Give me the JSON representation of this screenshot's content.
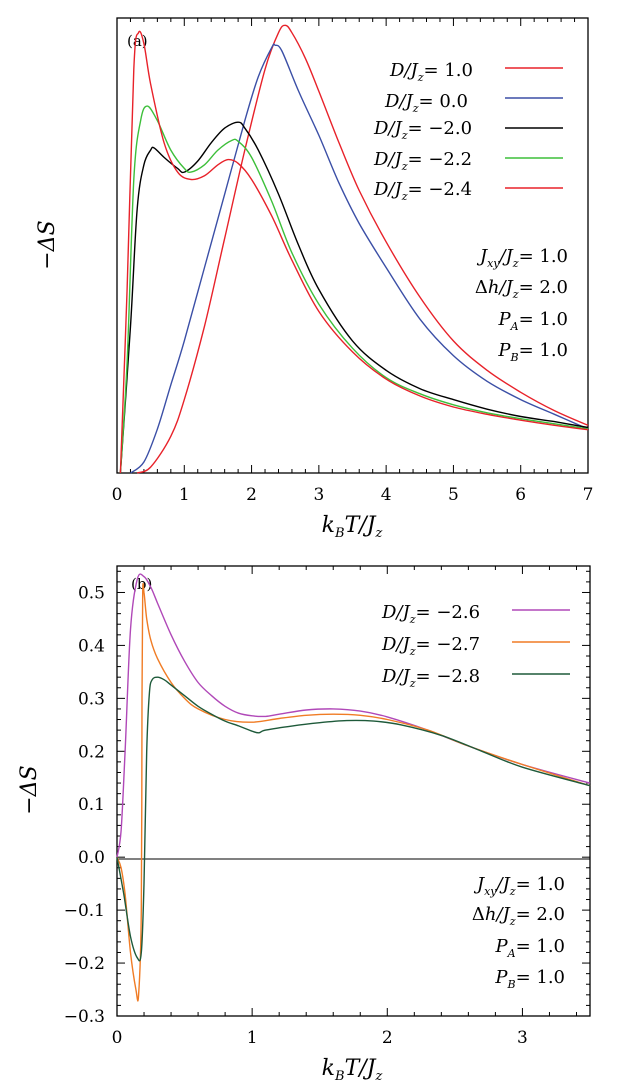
{
  "chart_data": [
    {
      "panel": "(a)",
      "type": "line",
      "ylabel": "−ΔS",
      "xlabel": "k_B T / J_z",
      "xlim": [
        0,
        7
      ],
      "xticks": [
        "0",
        "1",
        "2",
        "3",
        "4",
        "5",
        "6",
        "7"
      ],
      "ylim": [
        0,
        0.62
      ],
      "yticks_labeled": false,
      "grid": false,
      "legend_position": "top-right",
      "series": [
        {
          "name": "D/J_z = 1.0",
          "color": "#e8222a",
          "x": [
            0.3,
            0.5,
            0.8,
            1.0,
            1.3,
            1.6,
            1.9,
            2.2,
            2.4,
            2.5,
            2.6,
            2.8,
            3.0,
            3.3,
            3.6,
            4.0,
            4.5,
            5.0,
            5.5,
            6.0,
            6.5,
            7.0
          ],
          "y": [
            0.0,
            0.008,
            0.05,
            0.1,
            0.2,
            0.32,
            0.44,
            0.55,
            0.6,
            0.61,
            0.6,
            0.565,
            0.52,
            0.45,
            0.385,
            0.315,
            0.24,
            0.18,
            0.14,
            0.11,
            0.085,
            0.065
          ]
        },
        {
          "name": "D/J_z = 0.0",
          "color": "#3b4fa6",
          "x": [
            0.2,
            0.4,
            0.6,
            0.8,
            1.0,
            1.3,
            1.6,
            1.9,
            2.1,
            2.3,
            2.35,
            2.45,
            2.7,
            3.0,
            3.3,
            3.6,
            4.0,
            4.5,
            5.0,
            5.5,
            6.0,
            6.5,
            7.0
          ],
          "y": [
            0.0,
            0.015,
            0.06,
            0.12,
            0.18,
            0.28,
            0.38,
            0.48,
            0.54,
            0.58,
            0.583,
            0.575,
            0.52,
            0.46,
            0.395,
            0.34,
            0.28,
            0.21,
            0.16,
            0.125,
            0.1,
            0.08,
            0.06
          ]
        },
        {
          "name": "D/J_z = −2.0",
          "color": "#000000",
          "x": [
            0.05,
            0.2,
            0.3,
            0.4,
            0.5,
            0.55,
            0.7,
            0.9,
            1.0,
            1.2,
            1.4,
            1.6,
            1.8,
            1.9,
            2.1,
            2.4,
            2.7,
            3.0,
            3.5,
            4.0,
            4.5,
            5.0,
            5.5,
            6.0,
            6.5,
            7.0
          ],
          "y": [
            0.0,
            0.2,
            0.36,
            0.42,
            0.44,
            0.443,
            0.43,
            0.415,
            0.41,
            0.425,
            0.45,
            0.47,
            0.478,
            0.47,
            0.44,
            0.38,
            0.31,
            0.25,
            0.18,
            0.14,
            0.115,
            0.1,
            0.087,
            0.077,
            0.07,
            0.062
          ]
        },
        {
          "name": "D/J_z = −2.2",
          "color": "#3dbf3a",
          "x": [
            0.05,
            0.15,
            0.25,
            0.35,
            0.45,
            0.6,
            0.8,
            1.0,
            1.1,
            1.3,
            1.5,
            1.7,
            1.8,
            2.0,
            2.3,
            2.6,
            3.0,
            3.5,
            4.0,
            4.5,
            5.0,
            5.5,
            6.0,
            6.5,
            7.0
          ],
          "y": [
            0.0,
            0.15,
            0.4,
            0.48,
            0.5,
            0.48,
            0.44,
            0.415,
            0.41,
            0.42,
            0.44,
            0.453,
            0.452,
            0.43,
            0.37,
            0.3,
            0.23,
            0.17,
            0.13,
            0.108,
            0.093,
            0.082,
            0.074,
            0.067,
            0.06
          ]
        },
        {
          "name": "D/J_z = −2.4",
          "color": "#e8222a",
          "x": [
            0.05,
            0.15,
            0.25,
            0.32,
            0.4,
            0.5,
            0.7,
            0.9,
            1.1,
            1.3,
            1.5,
            1.65,
            1.8,
            2.0,
            2.3,
            2.6,
            3.0,
            3.5,
            4.0,
            4.5,
            5.0,
            5.5,
            6.0,
            6.5,
            7.0
          ],
          "y": [
            0.0,
            0.25,
            0.55,
            0.6,
            0.585,
            0.53,
            0.45,
            0.41,
            0.4,
            0.405,
            0.42,
            0.427,
            0.422,
            0.4,
            0.35,
            0.29,
            0.22,
            0.165,
            0.128,
            0.105,
            0.09,
            0.08,
            0.072,
            0.065,
            0.059
          ]
        }
      ],
      "annotations": [
        "J_xy/J_z = 1.0",
        "Δh/J_z = 2.0",
        "P_A = 1.0",
        "P_B = 1.0"
      ]
    },
    {
      "panel": "(b)",
      "type": "line",
      "ylabel": "−ΔS",
      "xlabel": "k_B T / J_z",
      "xlim": [
        0,
        3.5
      ],
      "xticks": [
        "0",
        "1",
        "2",
        "3"
      ],
      "ylim": [
        -0.3,
        0.55
      ],
      "yticks": [
        "−0.3",
        "−0.2",
        "−0.1",
        "0.0",
        "0.1",
        "0.2",
        "0.3",
        "0.4",
        "0.5"
      ],
      "grid": false,
      "legend_position": "top-right",
      "series": [
        {
          "name": "D/J_z = −2.6",
          "color": "#b048b8",
          "x": [
            0.0,
            0.03,
            0.06,
            0.1,
            0.15,
            0.2,
            0.25,
            0.3,
            0.4,
            0.5,
            0.6,
            0.7,
            0.8,
            0.9,
            1.0,
            1.1,
            1.2,
            1.4,
            1.6,
            1.8,
            2.0,
            2.3,
            2.6,
            3.0,
            3.5
          ],
          "y": [
            0.0,
            0.05,
            0.2,
            0.43,
            0.525,
            0.53,
            0.51,
            0.48,
            0.42,
            0.37,
            0.33,
            0.305,
            0.285,
            0.272,
            0.267,
            0.266,
            0.27,
            0.278,
            0.28,
            0.276,
            0.265,
            0.24,
            0.21,
            0.175,
            0.14
          ]
        },
        {
          "name": "D/J_z = −2.7",
          "color": "#f07c25",
          "x": [
            0.0,
            0.03,
            0.06,
            0.1,
            0.14,
            0.16,
            0.18,
            0.185,
            0.19,
            0.2,
            0.22,
            0.25,
            0.3,
            0.4,
            0.5,
            0.6,
            0.8,
            1.0,
            1.2,
            1.4,
            1.6,
            1.8,
            2.0,
            2.3,
            2.6,
            3.0,
            3.5
          ],
          "y": [
            0.0,
            -0.02,
            -0.07,
            -0.18,
            -0.25,
            -0.26,
            -0.1,
            0.3,
            0.5,
            0.5,
            0.45,
            0.41,
            0.375,
            0.33,
            0.3,
            0.28,
            0.26,
            0.255,
            0.262,
            0.268,
            0.27,
            0.268,
            0.26,
            0.24,
            0.21,
            0.175,
            0.135
          ]
        },
        {
          "name": "D/J_z = −2.8",
          "color": "#1e5a3a",
          "x": [
            0.0,
            0.05,
            0.1,
            0.15,
            0.18,
            0.2,
            0.22,
            0.24,
            0.26,
            0.3,
            0.35,
            0.4,
            0.5,
            0.6,
            0.7,
            0.8,
            0.9,
            1.0,
            1.05,
            1.1,
            1.3,
            1.5,
            1.7,
            1.9,
            2.1,
            2.4,
            2.7,
            3.0,
            3.5
          ],
          "y": [
            0.0,
            -0.07,
            -0.15,
            -0.19,
            -0.18,
            -0.05,
            0.2,
            0.31,
            0.335,
            0.34,
            0.335,
            0.325,
            0.305,
            0.285,
            0.27,
            0.257,
            0.248,
            0.238,
            0.235,
            0.24,
            0.248,
            0.254,
            0.258,
            0.257,
            0.25,
            0.23,
            0.2,
            0.17,
            0.135
          ]
        }
      ],
      "annotations": [
        "J_xy/J_z = 1.0",
        "Δh/J_z = 2.0",
        "P_A = 1.0",
        "P_B = 1.0"
      ]
    }
  ]
}
